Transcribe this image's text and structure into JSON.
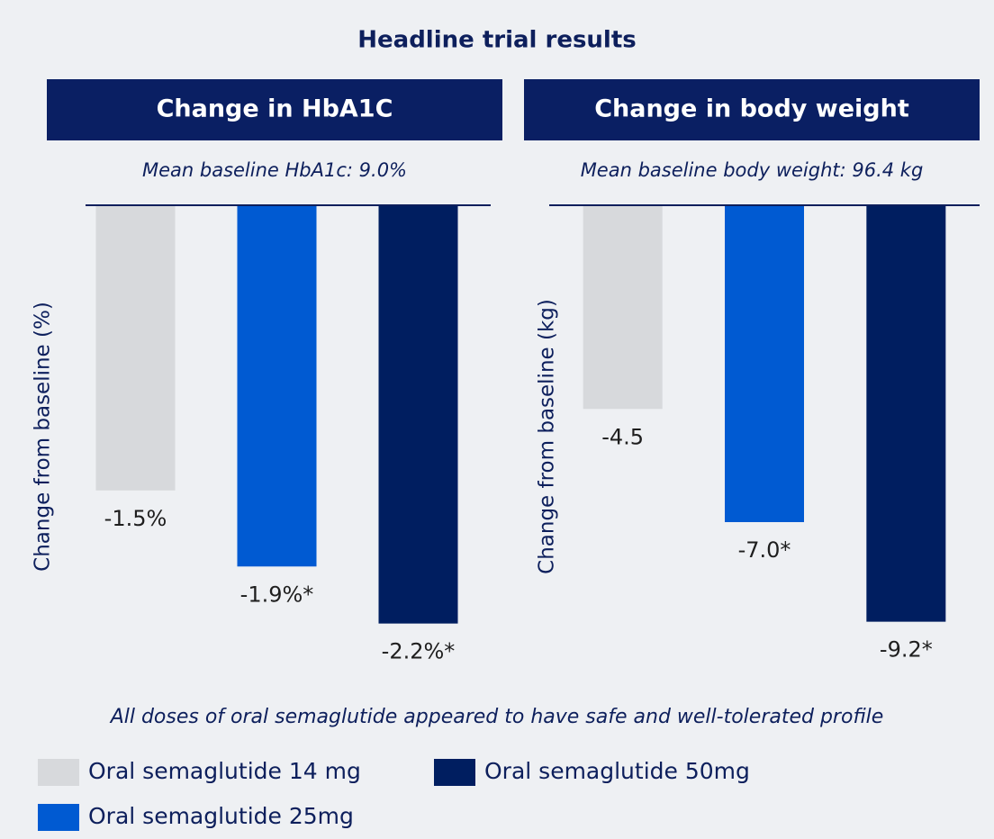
{
  "title": "Headline trial results",
  "chart_data": [
    {
      "type": "bar",
      "title": "Change in HbA1C",
      "subtitle": "Mean baseline HbA1c: 9.0%",
      "y_label": "Change from baseline (%)",
      "values": [
        -1.5,
        -1.9,
        -2.2
      ],
      "value_labels": [
        "-1.5%",
        "-1.9%*",
        "-2.2%*"
      ],
      "ylim": [
        -2.5,
        0
      ]
    },
    {
      "type": "bar",
      "title": "Change in body weight",
      "subtitle": "Mean baseline body weight: 96.4 kg",
      "y_label": "Change from baseline (kg)",
      "values": [
        -4.5,
        -7.0,
        -9.2
      ],
      "value_labels": [
        "-4.5",
        "-7.0*",
        "-9.2*"
      ],
      "ylim": [
        -10.5,
        0
      ]
    }
  ],
  "footnote": "All doses of oral semaglutide appeared to have safe and well-tolerated profile",
  "legend": [
    {
      "name": "Oral semaglutide 14 mg",
      "color": "#d7d9dc"
    },
    {
      "name": "Oral semaglutide 25mg",
      "color": "#005ad2"
    },
    {
      "name": "Oral semaglutide 50mg",
      "color": "#001e60"
    }
  ]
}
